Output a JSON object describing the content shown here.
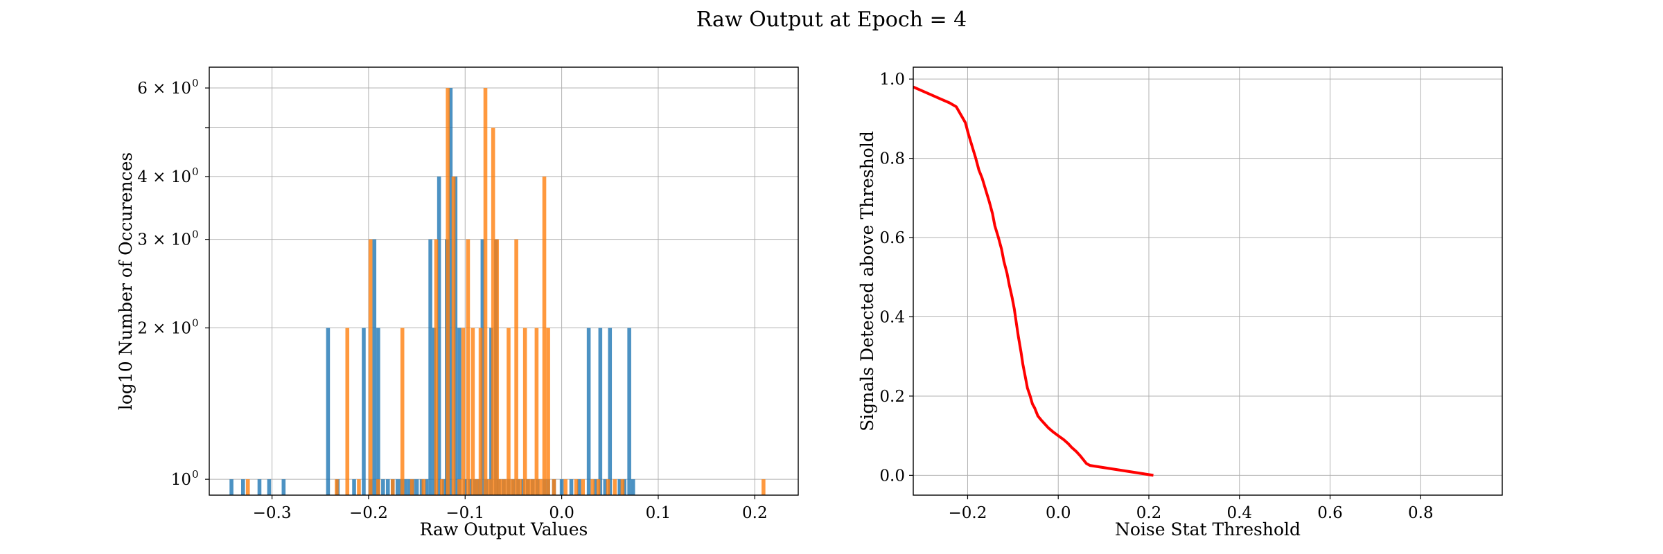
{
  "figure": {
    "title": "Raw Output at Epoch = 4"
  },
  "chart_data": [
    {
      "type": "bar",
      "subtype": "histogram",
      "title": "",
      "xlabel": "Raw Output Values",
      "ylabel": "log10 Number of Occurences",
      "xlim": [
        -0.365,
        0.245
      ],
      "ylim": [
        0.93,
        6.6
      ],
      "yscale": "log",
      "grid": true,
      "x_ticks": [
        -0.3,
        -0.2,
        -0.1,
        0.0,
        0.1,
        0.2
      ],
      "x_tick_labels": [
        "−0.3",
        "−0.2",
        "−0.1",
        "0.0",
        "0.1",
        "0.2"
      ],
      "y_ticks": [
        {
          "value": 1,
          "label": "10"
        },
        {
          "value": 2,
          "label": "2 × 10"
        },
        {
          "value": 3,
          "label": "3 × 10"
        },
        {
          "value": 4,
          "label": "4 × 10"
        },
        {
          "value": 5,
          "label": ""
        },
        {
          "value": 6,
          "label": "6 × 10"
        }
      ],
      "y_tick_exponent": "0",
      "bin_width": 0.004,
      "series": [
        {
          "color": "#1f77b4",
          "bars": [
            [
              -0.342,
              1
            ],
            [
              -0.33,
              1
            ],
            [
              -0.313,
              1
            ],
            [
              -0.303,
              1
            ],
            [
              -0.288,
              1
            ],
            [
              -0.242,
              2
            ],
            [
              -0.232,
              1
            ],
            [
              -0.215,
              1
            ],
            [
              -0.205,
              2
            ],
            [
              -0.198,
              1
            ],
            [
              -0.194,
              3
            ],
            [
              -0.19,
              2
            ],
            [
              -0.185,
              1
            ],
            [
              -0.18,
              1
            ],
            [
              -0.175,
              1
            ],
            [
              -0.17,
              1
            ],
            [
              -0.166,
              1
            ],
            [
              -0.162,
              1
            ],
            [
              -0.158,
              1
            ],
            [
              -0.154,
              1
            ],
            [
              -0.15,
              1
            ],
            [
              -0.145,
              1
            ],
            [
              -0.14,
              1
            ],
            [
              -0.136,
              3
            ],
            [
              -0.132,
              2
            ],
            [
              -0.127,
              4
            ],
            [
              -0.122,
              1
            ],
            [
              -0.119,
              3
            ],
            [
              -0.115,
              6
            ],
            [
              -0.11,
              4
            ],
            [
              -0.106,
              2
            ],
            [
              -0.1,
              1
            ],
            [
              -0.095,
              1
            ],
            [
              -0.09,
              1
            ],
            [
              -0.086,
              1
            ],
            [
              -0.082,
              3
            ],
            [
              -0.078,
              1
            ],
            [
              -0.073,
              2
            ],
            [
              -0.068,
              3
            ],
            [
              -0.065,
              1
            ],
            [
              -0.06,
              1
            ],
            [
              -0.055,
              1
            ],
            [
              -0.05,
              1
            ],
            [
              -0.045,
              1
            ],
            [
              -0.04,
              1
            ],
            [
              -0.035,
              1
            ],
            [
              -0.03,
              1
            ],
            [
              -0.025,
              1
            ],
            [
              -0.018,
              1
            ],
            [
              -0.014,
              1
            ],
            [
              -0.008,
              1
            ],
            [
              0.0,
              1
            ],
            [
              0.01,
              1
            ],
            [
              0.018,
              1
            ],
            [
              0.028,
              2
            ],
            [
              0.035,
              1
            ],
            [
              0.04,
              2
            ],
            [
              0.045,
              1
            ],
            [
              0.05,
              2
            ],
            [
              0.06,
              1
            ],
            [
              0.065,
              1
            ],
            [
              0.07,
              2
            ],
            [
              0.074,
              1
            ]
          ]
        },
        {
          "color": "#ff7f0e",
          "bars": [
            [
              -0.325,
              1
            ],
            [
              -0.233,
              1
            ],
            [
              -0.222,
              2
            ],
            [
              -0.21,
              1
            ],
            [
              -0.198,
              3
            ],
            [
              -0.19,
              1
            ],
            [
              -0.175,
              1
            ],
            [
              -0.165,
              2
            ],
            [
              -0.155,
              1
            ],
            [
              -0.143,
              1
            ],
            [
              -0.13,
              3
            ],
            [
              -0.124,
              1
            ],
            [
              -0.118,
              6
            ],
            [
              -0.112,
              4
            ],
            [
              -0.106,
              1
            ],
            [
              -0.102,
              2
            ],
            [
              -0.097,
              3
            ],
            [
              -0.092,
              2
            ],
            [
              -0.088,
              1
            ],
            [
              -0.084,
              2
            ],
            [
              -0.079,
              6
            ],
            [
              -0.075,
              1
            ],
            [
              -0.071,
              5
            ],
            [
              -0.067,
              3
            ],
            [
              -0.063,
              1
            ],
            [
              -0.059,
              1
            ],
            [
              -0.055,
              2
            ],
            [
              -0.051,
              1
            ],
            [
              -0.047,
              3
            ],
            [
              -0.043,
              1
            ],
            [
              -0.038,
              2
            ],
            [
              -0.034,
              1
            ],
            [
              -0.03,
              1
            ],
            [
              -0.026,
              2
            ],
            [
              -0.022,
              1
            ],
            [
              -0.018,
              4
            ],
            [
              -0.014,
              2
            ],
            [
              -0.008,
              1
            ],
            [
              0.004,
              1
            ],
            [
              0.015,
              1
            ],
            [
              0.022,
              1
            ],
            [
              0.032,
              1
            ],
            [
              0.038,
              1
            ],
            [
              0.048,
              1
            ],
            [
              0.055,
              1
            ],
            [
              0.063,
              1
            ],
            [
              0.209,
              1
            ]
          ]
        }
      ]
    },
    {
      "type": "line",
      "title": "",
      "xlabel": "Noise Stat Threshold",
      "ylabel": "Signals Detected above Threshold",
      "xlim": [
        -0.32,
        0.98
      ],
      "ylim": [
        -0.05,
        1.03
      ],
      "grid": true,
      "x_ticks": [
        -0.2,
        0.0,
        0.2,
        0.4,
        0.6,
        0.8
      ],
      "x_tick_labels": [
        "−0.2",
        "0.0",
        "0.2",
        "0.4",
        "0.6",
        "0.8"
      ],
      "y_ticks": [
        0.0,
        0.2,
        0.4,
        0.6,
        0.8,
        1.0
      ],
      "y_tick_labels": [
        "0.0",
        "0.2",
        "0.4",
        "0.6",
        "0.8",
        "1.0"
      ],
      "series": [
        {
          "color": "#ff0000",
          "x": [
            -0.32,
            -0.3,
            -0.28,
            -0.26,
            -0.24,
            -0.225,
            -0.215,
            -0.205,
            -0.198,
            -0.19,
            -0.182,
            -0.175,
            -0.168,
            -0.16,
            -0.152,
            -0.145,
            -0.14,
            -0.132,
            -0.125,
            -0.12,
            -0.113,
            -0.108,
            -0.102,
            -0.097,
            -0.092,
            -0.088,
            -0.082,
            -0.078,
            -0.073,
            -0.068,
            -0.062,
            -0.057,
            -0.052,
            -0.045,
            -0.038,
            -0.03,
            -0.022,
            -0.012,
            0.0,
            0.012,
            0.022,
            0.03,
            0.04,
            0.048,
            0.055,
            0.062,
            0.07,
            0.21
          ],
          "y": [
            0.98,
            0.97,
            0.96,
            0.95,
            0.94,
            0.93,
            0.91,
            0.89,
            0.86,
            0.83,
            0.8,
            0.77,
            0.75,
            0.72,
            0.69,
            0.66,
            0.63,
            0.6,
            0.57,
            0.54,
            0.51,
            0.48,
            0.45,
            0.42,
            0.38,
            0.35,
            0.31,
            0.28,
            0.25,
            0.22,
            0.2,
            0.18,
            0.17,
            0.15,
            0.14,
            0.13,
            0.12,
            0.11,
            0.1,
            0.09,
            0.08,
            0.07,
            0.06,
            0.05,
            0.04,
            0.03,
            0.025,
            0.0
          ]
        }
      ]
    }
  ]
}
